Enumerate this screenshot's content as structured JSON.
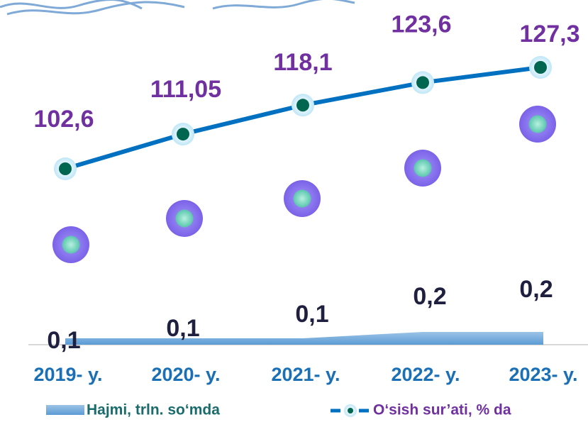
{
  "chart_data": {
    "type": "line",
    "categories": [
      "2019- y.",
      "2020- y.",
      "2021- y.",
      "2022- y.",
      "2023- y."
    ],
    "series": [
      {
        "name": "Hajmi, trln. so‘mda",
        "type": "area",
        "color": "#5b9bd5",
        "values": [
          0.1,
          0.1,
          0.1,
          0.2,
          0.2
        ],
        "value_labels": [
          "0,1",
          "0,1",
          "0,1",
          "0,2",
          "0,2"
        ]
      },
      {
        "name": "O‘sish sur’ati, % da",
        "type": "line",
        "color": "#0070c0",
        "marker_color": "#00664f",
        "values": [
          102.6,
          111.05,
          118.1,
          123.6,
          127.3
        ],
        "value_labels": [
          "102,6",
          "111,05",
          "118,1",
          "123,6",
          "127,3"
        ]
      }
    ]
  }
}
